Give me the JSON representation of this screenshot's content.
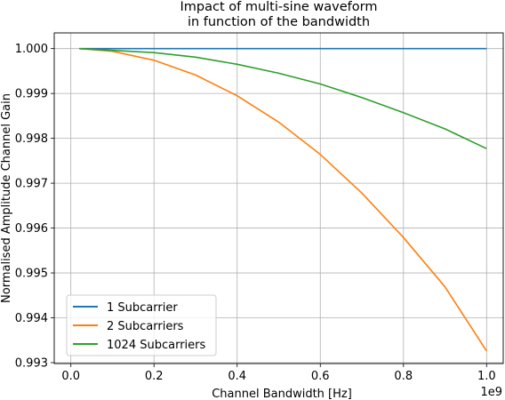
{
  "chart_data": {
    "type": "line",
    "title_lines": [
      "Impact of multi-sine waveform",
      "in function of the bandwidth"
    ],
    "xlabel": "Channel Bandwidth [Hz]",
    "ylabel": "Normalised Amplitude Channel Gain",
    "x_scale_label": "1e9",
    "xlim": [
      -0.04,
      1.04
    ],
    "ylim": [
      0.99298,
      1.00035
    ],
    "x_ticks": [
      0.0,
      0.2,
      0.4,
      0.6,
      0.8,
      1.0
    ],
    "x_tick_labels": [
      "0.0",
      "0.2",
      "0.4",
      "0.6",
      "0.8",
      "1.0"
    ],
    "y_ticks": [
      0.993,
      0.994,
      0.995,
      0.996,
      0.997,
      0.998,
      0.999,
      1.0
    ],
    "y_tick_labels": [
      "0.993",
      "0.994",
      "0.995",
      "0.996",
      "0.997",
      "0.998",
      "0.999",
      "1.000"
    ],
    "grid": true,
    "legend_position": "lower-left",
    "x": [
      0.02,
      0.1,
      0.2,
      0.3,
      0.4,
      0.5,
      0.6,
      0.7,
      0.8,
      0.9,
      1.0
    ],
    "series": [
      {
        "name": "1 Subcarrier",
        "color": "#1f77b4",
        "values": [
          1.0,
          1.0,
          1.0,
          1.0,
          1.0,
          1.0,
          1.0,
          1.0,
          1.0,
          1.0,
          1.0
        ]
      },
      {
        "name": "2 Subcarriers",
        "color": "#ff7f0e",
        "values": [
          1.0,
          0.99994,
          0.99974,
          0.99941,
          0.99895,
          0.99836,
          0.99764,
          0.99678,
          0.99579,
          0.99469,
          0.99326
        ]
      },
      {
        "name": "1024 Subcarriers",
        "color": "#2ca02c",
        "values": [
          1.0,
          0.99996,
          0.99991,
          0.99981,
          0.99965,
          0.99945,
          0.99921,
          0.99891,
          0.99857,
          0.99821,
          0.99777
        ]
      }
    ]
  }
}
